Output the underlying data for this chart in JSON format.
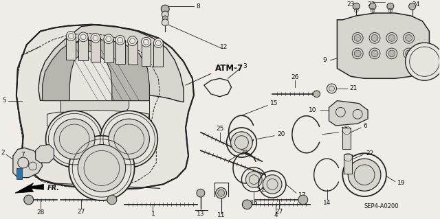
{
  "bg_color": "#f0ede8",
  "fig_width": 6.4,
  "fig_height": 3.19,
  "diagram_label": "ATM-7",
  "part_label": "SEP4-A0200",
  "arrow_label": "FR.",
  "line_color": "#222222",
  "text_color": "#111111",
  "part_fontsize": 6.5,
  "label_fontsize": 8.5,
  "body_color": "#d8d4ce",
  "body_light": "#e8e4de",
  "body_dark": "#b8b4ae",
  "shadow": "#c0bcb6"
}
